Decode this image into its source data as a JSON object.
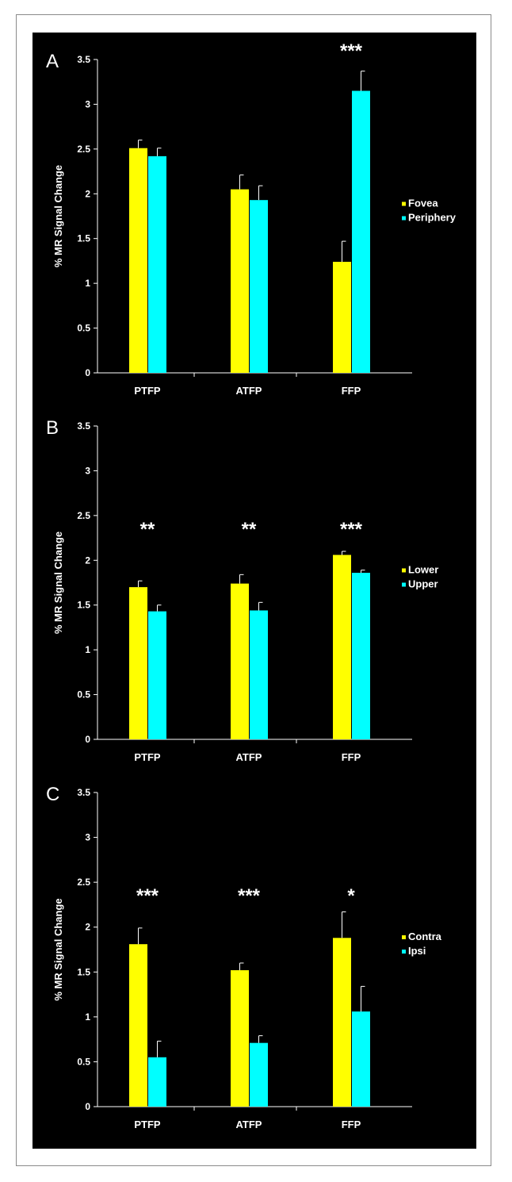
{
  "colors": {
    "background": "#000000",
    "series1": "#ffff00",
    "series2": "#00ffff",
    "axis": "#ffffff"
  },
  "chart_data": [
    {
      "type": "bar",
      "panel": "A",
      "ylabel": "% MR Signal Change",
      "ylim": [
        0,
        3.5
      ],
      "yticks": [
        "0",
        "0.5",
        "1",
        "1.5",
        "2",
        "2.5",
        "3",
        "3.5"
      ],
      "categories": [
        "PTFP",
        "ATFP",
        "FFP"
      ],
      "series": [
        {
          "name": "Fovea",
          "values": [
            2.51,
            2.05,
            1.24
          ],
          "errors": [
            0.09,
            0.16,
            0.23
          ]
        },
        {
          "name": "Periphery",
          "values": [
            2.42,
            1.93,
            3.15
          ],
          "errors": [
            0.09,
            0.16,
            0.22
          ]
        }
      ],
      "significance": [
        "",
        "",
        "***"
      ],
      "legend": "right"
    },
    {
      "type": "bar",
      "panel": "B",
      "ylabel": "% MR Signal Change",
      "ylim": [
        0,
        3.5
      ],
      "yticks": [
        "0",
        "0.5",
        "1",
        "1.5",
        "2",
        "2.5",
        "3",
        "3.5"
      ],
      "categories": [
        "PTFP",
        "ATFP",
        "FFP"
      ],
      "series": [
        {
          "name": "Lower",
          "values": [
            1.7,
            1.74,
            2.06
          ],
          "errors": [
            0.07,
            0.1,
            0.04
          ]
        },
        {
          "name": "Upper",
          "values": [
            1.43,
            1.44,
            1.86
          ],
          "errors": [
            0.07,
            0.09,
            0.03
          ]
        }
      ],
      "significance": [
        "**",
        "**",
        "***"
      ],
      "legend": "right"
    },
    {
      "type": "bar",
      "panel": "C",
      "ylabel": "% MR Signal Change",
      "ylim": [
        0,
        3.5
      ],
      "yticks": [
        "0",
        "0.5",
        "1",
        "1.5",
        "2",
        "2.5",
        "3",
        "3.5"
      ],
      "categories": [
        "PTFP",
        "ATFP",
        "FFP"
      ],
      "series": [
        {
          "name": "Contra",
          "values": [
            1.81,
            1.52,
            1.88
          ],
          "errors": [
            0.18,
            0.08,
            0.29
          ]
        },
        {
          "name": "Ipsi",
          "values": [
            0.55,
            0.71,
            1.06
          ],
          "errors": [
            0.18,
            0.08,
            0.28
          ]
        }
      ],
      "significance": [
        "***",
        "***",
        "*"
      ],
      "legend": "right"
    }
  ]
}
